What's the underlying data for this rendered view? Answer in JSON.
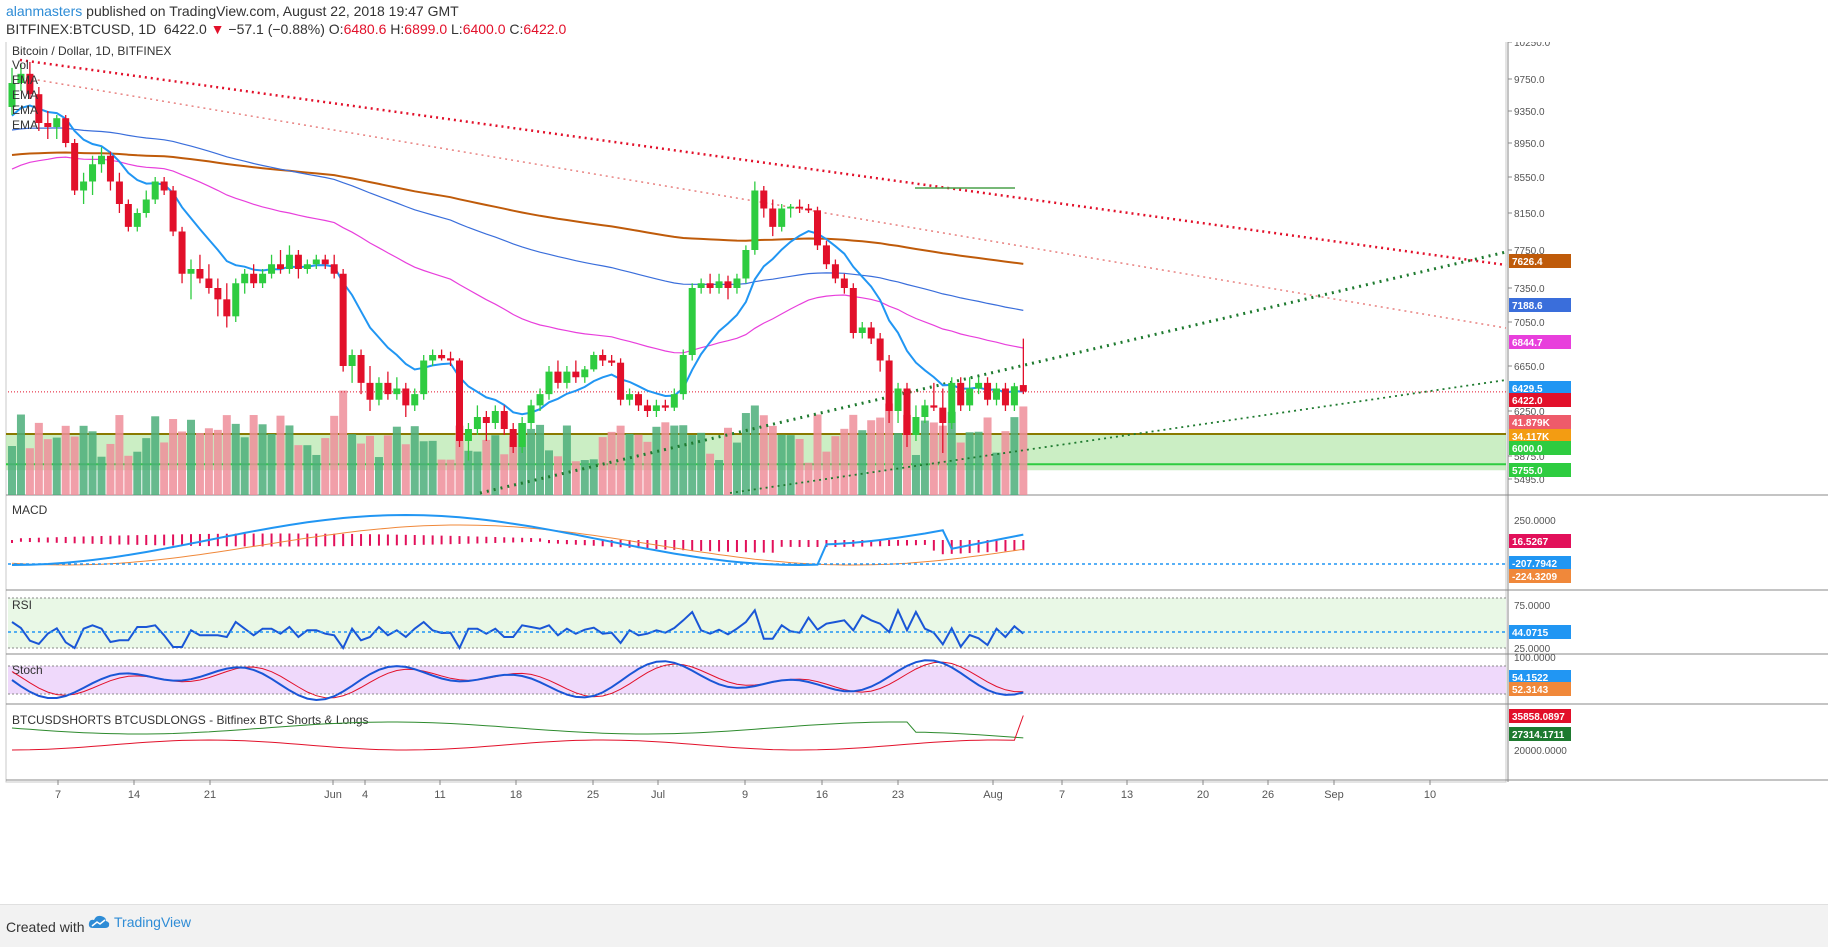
{
  "header": {
    "author": "alanmasters",
    "published_text": " published on TradingView.com, August 22, 2018 19:47 GMT",
    "symbol": "BITFINEX:BTCUSD, 1D",
    "last": "6422.0",
    "change_arrow": "▼",
    "change": "−57.1 (−0.88%)",
    "o_label": "O:",
    "o_value": "6480.6",
    "h_label": "H:",
    "h_value": "6899.0",
    "l_label": "L:",
    "l_value": "6400.0",
    "c_label": "C:",
    "c_value": "6422.0"
  },
  "footer": {
    "created_label": "Created with",
    "brand": "TradingView"
  },
  "colors": {
    "up": "#2ecc40",
    "down": "#e2102a",
    "ema_blue": "#2196f3",
    "ema_pink": "#e83fdc",
    "ema_brown": "#bf5b0a",
    "ema_dark_blue": "#3a6edb",
    "accent": "#2e8cd6"
  },
  "chart_data": [
    {
      "type": "candlestick",
      "title": "Bitcoin / Dollar, 1D, BITFINEX",
      "legend": [
        "Vol",
        "EMA",
        "EMA",
        "EMA",
        "EMA"
      ],
      "x_tick_labels": [
        "7",
        "14",
        "21",
        "Jun",
        "4",
        "11",
        "18",
        "25",
        "Jul",
        "9",
        "16",
        "23",
        "Aug",
        "7",
        "13",
        "20",
        "26",
        "Sep",
        "10"
      ],
      "y_tick_labels": [
        "10250.0",
        "9750.0",
        "9350.0",
        "8950.0",
        "8550.0",
        "8150.0",
        "7750.0",
        "7350.0",
        "7050.0",
        "6650.0",
        "6250.0",
        "5875.0",
        "5495.0"
      ],
      "ohlc": [
        {
          "o": 9400,
          "h": 9900,
          "l": 9300,
          "c": 9700
        },
        {
          "o": 9700,
          "h": 9950,
          "l": 9600,
          "c": 9820
        },
        {
          "o": 9820,
          "h": 9980,
          "l": 9500,
          "c": 9560
        },
        {
          "o": 9560,
          "h": 9650,
          "l": 9100,
          "c": 9200
        },
        {
          "o": 9200,
          "h": 9350,
          "l": 9000,
          "c": 9150
        },
        {
          "o": 9150,
          "h": 9300,
          "l": 9000,
          "c": 9260
        },
        {
          "o": 9260,
          "h": 9300,
          "l": 8900,
          "c": 8950
        },
        {
          "o": 8950,
          "h": 9000,
          "l": 8350,
          "c": 8400
        },
        {
          "o": 8400,
          "h": 8600,
          "l": 8250,
          "c": 8500
        },
        {
          "o": 8500,
          "h": 8800,
          "l": 8350,
          "c": 8700
        },
        {
          "o": 8700,
          "h": 8900,
          "l": 8600,
          "c": 8800
        },
        {
          "o": 8800,
          "h": 8850,
          "l": 8400,
          "c": 8500
        },
        {
          "o": 8500,
          "h": 8600,
          "l": 8150,
          "c": 8250
        },
        {
          "o": 8250,
          "h": 8300,
          "l": 7950,
          "c": 8000
        },
        {
          "o": 8000,
          "h": 8200,
          "l": 7950,
          "c": 8150
        },
        {
          "o": 8150,
          "h": 8400,
          "l": 8100,
          "c": 8300
        },
        {
          "o": 8300,
          "h": 8550,
          "l": 8250,
          "c": 8500
        },
        {
          "o": 8500,
          "h": 8550,
          "l": 8350,
          "c": 8400
        },
        {
          "o": 8400,
          "h": 8450,
          "l": 7900,
          "c": 7950
        },
        {
          "o": 7950,
          "h": 8000,
          "l": 7400,
          "c": 7500
        },
        {
          "o": 7500,
          "h": 7650,
          "l": 7250,
          "c": 7550
        },
        {
          "o": 7550,
          "h": 7700,
          "l": 7400,
          "c": 7450
        },
        {
          "o": 7450,
          "h": 7600,
          "l": 7300,
          "c": 7350
        },
        {
          "o": 7350,
          "h": 7450,
          "l": 7100,
          "c": 7250
        },
        {
          "o": 7250,
          "h": 7400,
          "l": 7000,
          "c": 7100
        },
        {
          "o": 7100,
          "h": 7450,
          "l": 7050,
          "c": 7400
        },
        {
          "o": 7400,
          "h": 7550,
          "l": 7300,
          "c": 7500
        },
        {
          "o": 7500,
          "h": 7600,
          "l": 7350,
          "c": 7400
        },
        {
          "o": 7400,
          "h": 7550,
          "l": 7350,
          "c": 7500
        },
        {
          "o": 7500,
          "h": 7700,
          "l": 7450,
          "c": 7600
        },
        {
          "o": 7600,
          "h": 7750,
          "l": 7500,
          "c": 7550
        },
        {
          "o": 7550,
          "h": 7800,
          "l": 7500,
          "c": 7700
        },
        {
          "o": 7700,
          "h": 7750,
          "l": 7450,
          "c": 7550
        },
        {
          "o": 7550,
          "h": 7650,
          "l": 7500,
          "c": 7600
        },
        {
          "o": 7600,
          "h": 7700,
          "l": 7550,
          "c": 7650
        },
        {
          "o": 7650,
          "h": 7700,
          "l": 7550,
          "c": 7600
        },
        {
          "o": 7600,
          "h": 7700,
          "l": 7450,
          "c": 7500
        },
        {
          "o": 7500,
          "h": 7550,
          "l": 6600,
          "c": 6650
        },
        {
          "o": 6650,
          "h": 6800,
          "l": 6500,
          "c": 6750
        },
        {
          "o": 6750,
          "h": 6800,
          "l": 6400,
          "c": 6500
        },
        {
          "o": 6500,
          "h": 6650,
          "l": 6250,
          "c": 6350
        },
        {
          "o": 6350,
          "h": 6550,
          "l": 6300,
          "c": 6500
        },
        {
          "o": 6500,
          "h": 6600,
          "l": 6350,
          "c": 6400
        },
        {
          "o": 6400,
          "h": 6550,
          "l": 6350,
          "c": 6450
        },
        {
          "o": 6450,
          "h": 6500,
          "l": 6200,
          "c": 6300
        },
        {
          "o": 6300,
          "h": 6450,
          "l": 6250,
          "c": 6400
        },
        {
          "o": 6400,
          "h": 6750,
          "l": 6350,
          "c": 6700
        },
        {
          "o": 6700,
          "h": 6800,
          "l": 6650,
          "c": 6750
        },
        {
          "o": 6750,
          "h": 6800,
          "l": 6700,
          "c": 6720
        },
        {
          "o": 6720,
          "h": 6780,
          "l": 6650,
          "c": 6700
        },
        {
          "o": 6700,
          "h": 6720,
          "l": 5950,
          "c": 6000
        },
        {
          "o": 6000,
          "h": 6150,
          "l": 5800,
          "c": 6100
        },
        {
          "o": 6100,
          "h": 6300,
          "l": 6050,
          "c": 6200
        },
        {
          "o": 6200,
          "h": 6250,
          "l": 6000,
          "c": 6150
        },
        {
          "o": 6150,
          "h": 6300,
          "l": 6100,
          "c": 6250
        },
        {
          "o": 6250,
          "h": 6300,
          "l": 6050,
          "c": 6100
        },
        {
          "o": 6100,
          "h": 6150,
          "l": 5900,
          "c": 5950
        },
        {
          "o": 5950,
          "h": 6200,
          "l": 5900,
          "c": 6150
        },
        {
          "o": 6150,
          "h": 6350,
          "l": 6100,
          "c": 6300
        },
        {
          "o": 6300,
          "h": 6450,
          "l": 6250,
          "c": 6400
        },
        {
          "o": 6400,
          "h": 6650,
          "l": 6350,
          "c": 6600
        },
        {
          "o": 6600,
          "h": 6700,
          "l": 6450,
          "c": 6500
        },
        {
          "o": 6500,
          "h": 6650,
          "l": 6450,
          "c": 6600
        },
        {
          "o": 6600,
          "h": 6700,
          "l": 6500,
          "c": 6550
        },
        {
          "o": 6550,
          "h": 6650,
          "l": 6500,
          "c": 6620
        },
        {
          "o": 6620,
          "h": 6780,
          "l": 6600,
          "c": 6750
        },
        {
          "o": 6750,
          "h": 6800,
          "l": 6650,
          "c": 6700
        },
        {
          "o": 6700,
          "h": 6750,
          "l": 6650,
          "c": 6680
        },
        {
          "o": 6680,
          "h": 6720,
          "l": 6300,
          "c": 6350
        },
        {
          "o": 6350,
          "h": 6450,
          "l": 6300,
          "c": 6400
        },
        {
          "o": 6400,
          "h": 6420,
          "l": 6250,
          "c": 6300
        },
        {
          "o": 6300,
          "h": 6350,
          "l": 6200,
          "c": 6250
        },
        {
          "o": 6250,
          "h": 6350,
          "l": 6200,
          "c": 6300
        },
        {
          "o": 6300,
          "h": 6350,
          "l": 6250,
          "c": 6280
        },
        {
          "o": 6280,
          "h": 6450,
          "l": 6250,
          "c": 6400
        },
        {
          "o": 6400,
          "h": 6800,
          "l": 6350,
          "c": 6750
        },
        {
          "o": 6750,
          "h": 7400,
          "l": 6700,
          "c": 7350
        },
        {
          "o": 7350,
          "h": 7450,
          "l": 7300,
          "c": 7400
        },
        {
          "o": 7400,
          "h": 7500,
          "l": 7300,
          "c": 7350
        },
        {
          "o": 7350,
          "h": 7500,
          "l": 7300,
          "c": 7420
        },
        {
          "o": 7420,
          "h": 7480,
          "l": 7250,
          "c": 7350
        },
        {
          "o": 7350,
          "h": 7500,
          "l": 7300,
          "c": 7450
        },
        {
          "o": 7450,
          "h": 7800,
          "l": 7400,
          "c": 7750
        },
        {
          "o": 7750,
          "h": 8500,
          "l": 7700,
          "c": 8400
        },
        {
          "o": 8400,
          "h": 8450,
          "l": 8100,
          "c": 8200
        },
        {
          "o": 8200,
          "h": 8300,
          "l": 7900,
          "c": 8000
        },
        {
          "o": 8000,
          "h": 8250,
          "l": 7950,
          "c": 8200
        },
        {
          "o": 8200,
          "h": 8250,
          "l": 8100,
          "c": 8220
        },
        {
          "o": 8220,
          "h": 8300,
          "l": 8150,
          "c": 8200
        },
        {
          "o": 8200,
          "h": 8250,
          "l": 8150,
          "c": 8180
        },
        {
          "o": 8180,
          "h": 8220,
          "l": 7750,
          "c": 7800
        },
        {
          "o": 7800,
          "h": 7850,
          "l": 7550,
          "c": 7600
        },
        {
          "o": 7600,
          "h": 7650,
          "l": 7400,
          "c": 7450
        },
        {
          "o": 7450,
          "h": 7500,
          "l": 7300,
          "c": 7350
        },
        {
          "o": 7350,
          "h": 7400,
          "l": 6900,
          "c": 6950
        },
        {
          "o": 6950,
          "h": 7050,
          "l": 6900,
          "c": 7000
        },
        {
          "o": 7000,
          "h": 7050,
          "l": 6850,
          "c": 6900
        },
        {
          "o": 6900,
          "h": 6950,
          "l": 6600,
          "c": 6700
        },
        {
          "o": 6700,
          "h": 6750,
          "l": 6150,
          "c": 6250
        },
        {
          "o": 6250,
          "h": 6500,
          "l": 6150,
          "c": 6450
        },
        {
          "o": 6450,
          "h": 6500,
          "l": 5950,
          "c": 6050
        },
        {
          "o": 6050,
          "h": 6300,
          "l": 6000,
          "c": 6200
        },
        {
          "o": 6200,
          "h": 6350,
          "l": 6150,
          "c": 6300
        },
        {
          "o": 6300,
          "h": 6500,
          "l": 6250,
          "c": 6280
        },
        {
          "o": 6280,
          "h": 6450,
          "l": 5900,
          "c": 6150
        },
        {
          "o": 6150,
          "h": 6550,
          "l": 6100,
          "c": 6500
        },
        {
          "o": 6500,
          "h": 6550,
          "l": 6250,
          "c": 6300
        },
        {
          "o": 6300,
          "h": 6550,
          "l": 6250,
          "c": 6450
        },
        {
          "o": 6450,
          "h": 6550,
          "l": 6400,
          "c": 6500
        },
        {
          "o": 6500,
          "h": 6550,
          "l": 6300,
          "c": 6350
        },
        {
          "o": 6350,
          "h": 6500,
          "l": 6300,
          "c": 6450
        },
        {
          "o": 6450,
          "h": 6500,
          "l": 6250,
          "c": 6300
        },
        {
          "o": 6300,
          "h": 6500,
          "l": 6250,
          "c": 6470
        },
        {
          "o": 6480.6,
          "h": 6899,
          "l": 6400,
          "c": 6422
        }
      ],
      "ema_blue_last": "6429.5",
      "ema_pink_last": "6844.7",
      "ema_dark_blue_last": "7188.6",
      "ema_brown_last": "7626.4",
      "price_label": "6422.0",
      "volume_labels": [
        "41.879K",
        "34.117K"
      ],
      "support_levels": [
        "6000.0",
        "5755.0"
      ]
    },
    {
      "type": "line",
      "title": "MACD",
      "y_tick_labels": [
        "250.0000"
      ],
      "values_labels": [
        "16.5267",
        "-207.7942",
        "-224.3209"
      ]
    },
    {
      "type": "line",
      "title": "RSI",
      "y_tick_labels": [
        "75.0000",
        "25.0000"
      ],
      "value_label": "44.0715"
    },
    {
      "type": "line",
      "title": "Stoch",
      "y_tick_labels": [
        "100.0000"
      ],
      "values_labels": [
        "54.1522",
        "52.3143"
      ]
    },
    {
      "type": "line",
      "title": "BTCUSDSHORTS BTCUSDLONGS - Bitfinex BTC Shorts & Longs",
      "y_tick_labels": [
        "20000.0000"
      ],
      "values_labels": [
        "35858.0897",
        "27314.1711"
      ]
    }
  ]
}
